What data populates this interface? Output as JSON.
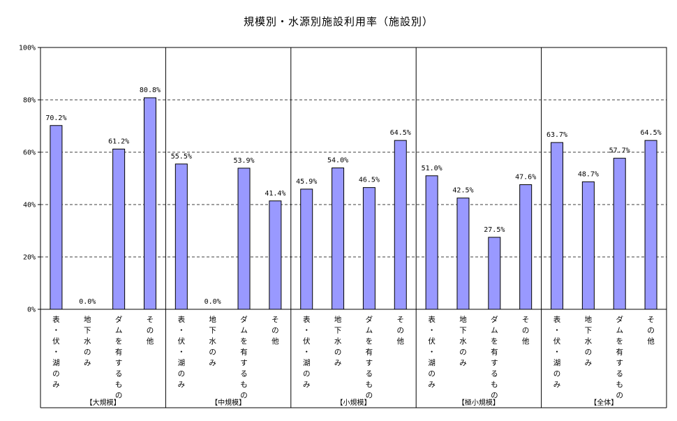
{
  "chart_data": {
    "type": "bar",
    "title": "規模別・水源別施設利用率（施設別）",
    "ylim": [
      0,
      100
    ],
    "yticks": [
      0,
      20,
      40,
      60,
      80,
      100
    ],
    "ytick_labels": [
      "0%",
      "20%",
      "40%",
      "60%",
      "80%",
      "100%"
    ],
    "grid": true,
    "legend": "none",
    "bar_color": "#9999ff",
    "categories": [
      "表・伏・湖のみ",
      "地下水のみ",
      "ダムを有するもの",
      "その他"
    ],
    "groups": [
      {
        "label": "【大規模】",
        "values": [
          70.2,
          0.0,
          61.2,
          80.8
        ],
        "value_labels": [
          "70.2%",
          "0.0%",
          "61.2%",
          "80.8%"
        ]
      },
      {
        "label": "【中規模】",
        "values": [
          55.5,
          0.0,
          53.9,
          41.4
        ],
        "value_labels": [
          "55.5%",
          "0.0%",
          "53.9%",
          "41.4%"
        ]
      },
      {
        "label": "【小規模】",
        "values": [
          45.9,
          54.0,
          46.5,
          64.5
        ],
        "value_labels": [
          "45.9%",
          "54.0%",
          "46.5%",
          "64.5%"
        ]
      },
      {
        "label": "【極小規模】",
        "values": [
          51.0,
          42.5,
          27.5,
          47.6
        ],
        "value_labels": [
          "51.0%",
          "42.5%",
          "27.5%",
          "47.6%"
        ]
      },
      {
        "label": "【全体】",
        "values": [
          63.7,
          48.7,
          57.7,
          64.5
        ],
        "value_labels": [
          "63.7%",
          "48.7%",
          "57.7%",
          "64.5%"
        ]
      }
    ]
  }
}
